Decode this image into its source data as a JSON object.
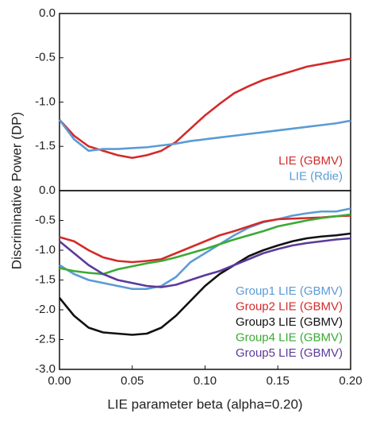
{
  "chart_data": [
    {
      "type": "line",
      "ylabel": "Discriminative Power (DP)",
      "x": [
        0,
        0.01,
        0.02,
        0.03,
        0.04,
        0.05,
        0.06,
        0.07,
        0.08,
        0.09,
        0.1,
        0.11,
        0.12,
        0.13,
        0.14,
        0.15,
        0.16,
        0.17,
        0.18,
        0.19,
        0.2
      ],
      "xlim": [
        0,
        0.2
      ],
      "ylim": [
        -2,
        0
      ],
      "yticks": [
        {
          "value": 0,
          "label": "0.0"
        },
        -0.5,
        {
          "value": -1,
          "label": "-1.0"
        },
        -1.5
      ],
      "series": [
        {
          "name": "LIE (GBMV)",
          "color": "#d42a2a",
          "values": [
            -1.2,
            -1.38,
            -1.5,
            -1.55,
            -1.6,
            -1.63,
            -1.6,
            -1.55,
            -1.45,
            -1.3,
            -1.15,
            -1.02,
            -0.9,
            -0.82,
            -0.75,
            -0.7,
            -0.65,
            -0.6,
            -0.57,
            -0.54,
            -0.51
          ]
        },
        {
          "name": "LIE (Rdie)",
          "color": "#5b9bd5",
          "values": [
            -1.2,
            -1.42,
            -1.55,
            -1.53,
            -1.53,
            -1.52,
            -1.51,
            -1.49,
            -1.47,
            -1.44,
            -1.42,
            -1.4,
            -1.38,
            -1.36,
            -1.34,
            -1.32,
            -1.3,
            -1.28,
            -1.26,
            -1.24,
            -1.21
          ]
        }
      ]
    },
    {
      "type": "line",
      "xlabel": "LIE parameter beta (alpha=0.20)",
      "x": [
        0,
        0.01,
        0.02,
        0.03,
        0.04,
        0.05,
        0.06,
        0.07,
        0.08,
        0.09,
        0.1,
        0.11,
        0.12,
        0.13,
        0.14,
        0.15,
        0.16,
        0.17,
        0.18,
        0.19,
        0.2
      ],
      "xlim": [
        0,
        0.2
      ],
      "ylim": [
        -3,
        0
      ],
      "xticks": [
        {
          "value": 0,
          "label": "0.00"
        },
        0.05,
        {
          "value": 0.1,
          "label": "0.10"
        },
        0.15,
        {
          "value": 0.2,
          "label": "0.20"
        }
      ],
      "yticks": [
        {
          "value": 0,
          "label": "0.0"
        },
        -0.5,
        {
          "value": -1,
          "label": "-1.0"
        },
        -1.5,
        {
          "value": -2,
          "label": "-2.0"
        },
        -2.5,
        {
          "value": -3,
          "label": "-3.0"
        }
      ],
      "series": [
        {
          "name": "Group1 LIE (GBMV)",
          "color": "#5b9bd5",
          "values": [
            -1.25,
            -1.4,
            -1.5,
            -1.55,
            -1.6,
            -1.65,
            -1.65,
            -1.6,
            -1.45,
            -1.2,
            -1.05,
            -0.9,
            -0.75,
            -0.62,
            -0.53,
            -0.48,
            -0.42,
            -0.38,
            -0.35,
            -0.35,
            -0.3
          ]
        },
        {
          "name": "Group2 LIE (GBMV)",
          "color": "#d42a2a",
          "values": [
            -0.78,
            -0.85,
            -1.0,
            -1.12,
            -1.18,
            -1.2,
            -1.18,
            -1.15,
            -1.05,
            -0.95,
            -0.85,
            -0.75,
            -0.68,
            -0.6,
            -0.52,
            -0.48,
            -0.47,
            -0.46,
            -0.45,
            -0.43,
            -0.42
          ]
        },
        {
          "name": "Group3 LIE (GBMV)",
          "color": "#111111",
          "values": [
            -1.8,
            -2.1,
            -2.3,
            -2.38,
            -2.4,
            -2.42,
            -2.4,
            -2.3,
            -2.1,
            -1.85,
            -1.6,
            -1.4,
            -1.25,
            -1.1,
            -1.0,
            -0.92,
            -0.85,
            -0.8,
            -0.77,
            -0.75,
            -0.72
          ]
        },
        {
          "name": "Group4 LIE (GBMV)",
          "color": "#3aaa35",
          "values": [
            -1.3,
            -1.35,
            -1.38,
            -1.4,
            -1.32,
            -1.27,
            -1.22,
            -1.18,
            -1.12,
            -1.05,
            -0.98,
            -0.9,
            -0.82,
            -0.75,
            -0.68,
            -0.6,
            -0.55,
            -0.5,
            -0.46,
            -0.43,
            -0.4
          ]
        },
        {
          "name": "Group5 LIE (GBMV)",
          "color": "#5b3a9b",
          "values": [
            -0.85,
            -1.05,
            -1.25,
            -1.4,
            -1.5,
            -1.55,
            -1.6,
            -1.62,
            -1.58,
            -1.5,
            -1.42,
            -1.35,
            -1.25,
            -1.15,
            -1.05,
            -0.98,
            -0.92,
            -0.88,
            -0.85,
            -0.82,
            -0.8
          ]
        }
      ]
    }
  ]
}
